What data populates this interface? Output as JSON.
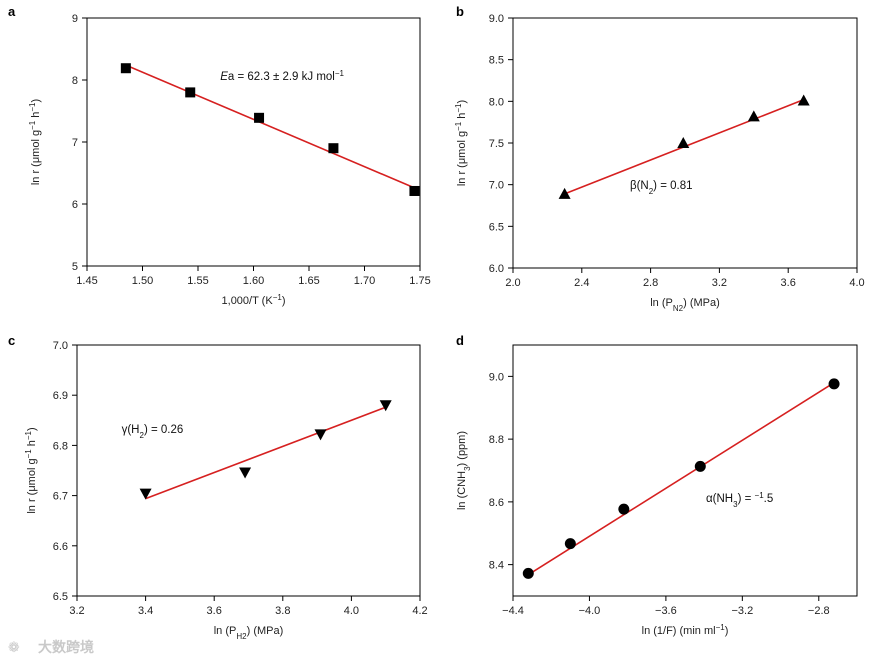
{
  "chart_data": [
    {
      "panel": "a",
      "type": "scatter",
      "marker": "square",
      "xlabel": "1,000/T (K−1)",
      "ylabel": "ln r (μmol g−1 h−1)",
      "xlim": [
        1.45,
        1.75
      ],
      "ylim": [
        5,
        9
      ],
      "xticks": [
        1.45,
        1.5,
        1.55,
        1.6,
        1.65,
        1.7,
        1.75
      ],
      "xtick_labels": [
        "1.45",
        "1.50",
        "1.55",
        "1.60",
        "1.65",
        "1.70",
        "1.75"
      ],
      "yticks": [
        5,
        6,
        7,
        8,
        9
      ],
      "ytick_labels": [
        "5",
        "6",
        "7",
        "8",
        "9"
      ],
      "x": [
        1.485,
        1.543,
        1.605,
        1.672,
        1.745
      ],
      "y": [
        8.19,
        7.8,
        7.39,
        6.9,
        6.21
      ],
      "fit": {
        "x": [
          1.485,
          1.745
        ],
        "y": [
          8.24,
          6.26
        ],
        "color": "#d62020"
      },
      "annotation": "Ea = 62.3 ± 2.9 kJ mol−1",
      "annotation_at": {
        "x": 1.57,
        "y": 8.0
      }
    },
    {
      "panel": "b",
      "type": "scatter",
      "marker": "triangle-up",
      "xlabel": "ln (PN2) (MPa)",
      "ylabel": "ln r (μmol g−1 h−1)",
      "xlim": [
        2.0,
        4.0
      ],
      "ylim": [
        6.0,
        9.0
      ],
      "xticks": [
        2.0,
        2.4,
        2.8,
        3.2,
        3.6,
        4.0
      ],
      "xtick_labels": [
        "2.0",
        "2.4",
        "2.8",
        "3.2",
        "3.6",
        "4.0"
      ],
      "yticks": [
        6.0,
        6.5,
        7.0,
        7.5,
        8.0,
        8.5,
        9.0
      ],
      "ytick_labels": [
        "6.0",
        "6.5",
        "7.0",
        "7.5",
        "8.0",
        "8.5",
        "9.0"
      ],
      "x": [
        2.3,
        2.99,
        3.4,
        3.69
      ],
      "y": [
        6.89,
        7.5,
        7.82,
        8.01
      ],
      "fit": {
        "x": [
          2.3,
          3.69
        ],
        "y": [
          6.89,
          8.02
        ],
        "color": "#d62020"
      },
      "annotation": "β(N2) = 0.81",
      "annotation_at": {
        "x": 2.68,
        "y": 6.95
      }
    },
    {
      "panel": "c",
      "type": "scatter",
      "marker": "triangle-down",
      "xlabel": "ln (PH2) (MPa)",
      "ylabel": "ln r (μmol g−1 h−1)",
      "xlim": [
        3.2,
        4.2
      ],
      "ylim": [
        6.5,
        7.0
      ],
      "xticks": [
        3.2,
        3.4,
        3.6,
        3.8,
        4.0,
        4.2
      ],
      "xtick_labels": [
        "3.2",
        "3.4",
        "3.6",
        "3.8",
        "4.0",
        "4.2"
      ],
      "yticks": [
        6.5,
        6.6,
        6.7,
        6.8,
        6.9,
        7.0
      ],
      "ytick_labels": [
        "6.5",
        "6.6",
        "6.7",
        "6.8",
        "6.9",
        "7.0"
      ],
      "x": [
        3.4,
        3.69,
        3.91,
        4.1
      ],
      "y": [
        6.704,
        6.746,
        6.822,
        6.88
      ],
      "fit": {
        "x": [
          3.4,
          4.1
        ],
        "y": [
          6.694,
          6.876
        ],
        "color": "#d62020"
      },
      "annotation": "γ(H2) = 0.26",
      "annotation_at": {
        "x": 3.33,
        "y": 6.825
      }
    },
    {
      "panel": "d",
      "type": "scatter",
      "marker": "circle",
      "xlabel": "ln (1/F) (min ml−1)",
      "ylabel": "ln (CNH3) (ppm)",
      "xlim": [
        -4.4,
        -2.6
      ],
      "ylim": [
        8.3,
        9.1
      ],
      "xticks": [
        -4.4,
        -4.0,
        -3.6,
        -3.2,
        -2.8
      ],
      "xtick_labels": [
        "−4.4",
        "−4.0",
        "−3.6",
        "−3.2",
        "−2.8"
      ],
      "yticks": [
        8.4,
        8.6,
        8.8,
        9.0
      ],
      "ytick_labels": [
        "8.4",
        "8.6",
        "8.8",
        "9.0"
      ],
      "x": [
        -4.32,
        -4.1,
        -3.82,
        -3.42,
        -2.72
      ],
      "y": [
        8.372,
        8.467,
        8.577,
        8.713,
        8.976
      ],
      "fit": {
        "x": [
          -4.32,
          -2.72
        ],
        "y": [
          8.368,
          8.98
        ],
        "color": "#d62020"
      },
      "annotation": "α(NH3) = −1.5",
      "annotation_at": {
        "x": -3.39,
        "y": 8.6
      }
    }
  ],
  "watermark": "大数跨境"
}
